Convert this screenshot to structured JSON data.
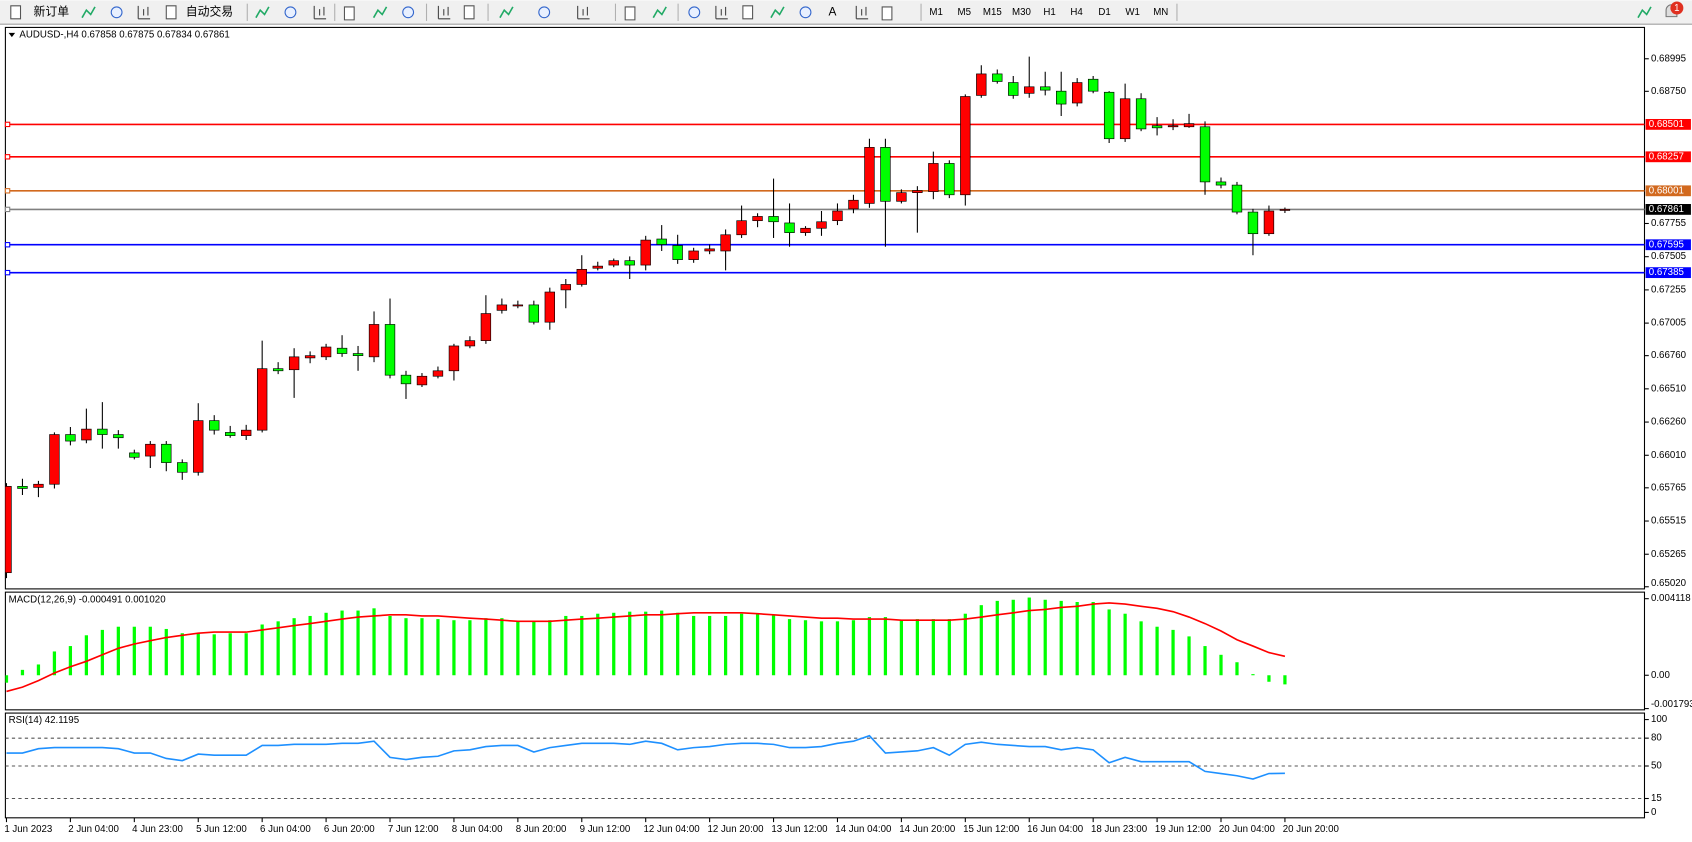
{
  "toolbar": {
    "new_order": "新订单",
    "auto_trading": "自动交易",
    "text_tool": "A",
    "timeframes": [
      "M1",
      "M5",
      "M15",
      "M30",
      "H1",
      "H4",
      "D1",
      "W1",
      "MN"
    ],
    "alerts": 1
  },
  "chart_data": [
    {
      "type": "candlestick",
      "title": "AUDUSD-,H4  0.67858 0.67875 0.67834 0.67861",
      "up_color": "#ff0000",
      "down_color": "#00ff00",
      "categories": [
        "1 Jun 2023",
        null,
        null,
        null,
        "2 Jun 04:00",
        null,
        null,
        null,
        "4 Jun 23:00",
        null,
        null,
        null,
        "5 Jun 12:00",
        null,
        null,
        null,
        "6 Jun 04:00",
        null,
        null,
        null,
        "6 Jun 20:00",
        null,
        null,
        null,
        "7 Jun 12:00",
        null,
        null,
        null,
        "8 Jun 04:00",
        null,
        null,
        null,
        "8 Jun 20:00",
        null,
        null,
        null,
        "9 Jun 12:00",
        null,
        null,
        null,
        "12 Jun 04:00",
        null,
        null,
        null,
        "12 Jun 20:00",
        null,
        null,
        null,
        "13 Jun 12:00",
        null,
        null,
        null,
        "14 Jun 04:00",
        null,
        null,
        null,
        "14 Jun 20:00",
        null,
        null,
        null,
        "15 Jun 12:00",
        null,
        null,
        null,
        "16 Jun 04:00",
        null,
        null,
        null,
        "18 Jun 23:00",
        null,
        null,
        null,
        "19 Jun 12:00",
        null,
        null,
        null,
        "20 Jun 04:00",
        null,
        null,
        null,
        "20 Jun 20:00"
      ],
      "candles": [
        [
          0.65126,
          0.658,
          0.65085,
          0.65776
        ],
        [
          0.65776,
          0.65833,
          0.65711,
          0.6576
        ],
        [
          0.65768,
          0.65817,
          0.65695,
          0.65792
        ],
        [
          0.65792,
          0.66182,
          0.6576,
          0.66166
        ],
        [
          0.66166,
          0.66223,
          0.66085,
          0.66117
        ],
        [
          0.66125,
          0.66361,
          0.66101,
          0.66207
        ],
        [
          0.66207,
          0.6641,
          0.6606,
          0.66166
        ],
        [
          0.66166,
          0.66199,
          0.6606,
          0.66142
        ],
        [
          0.66028,
          0.66052,
          0.65979,
          0.65995
        ],
        [
          0.66004,
          0.66117,
          0.65914,
          0.66093
        ],
        [
          0.66093,
          0.66117,
          0.6589,
          0.65955
        ],
        [
          0.65955,
          0.65979,
          0.65825,
          0.65882
        ],
        [
          0.65882,
          0.66402,
          0.65857,
          0.66271
        ],
        [
          0.66271,
          0.66312,
          0.66166,
          0.66199
        ],
        [
          0.66182,
          0.66231,
          0.66142,
          0.66158
        ],
        [
          0.66158,
          0.66239,
          0.66125,
          0.66199
        ],
        [
          0.66199,
          0.66873,
          0.66182,
          0.66662
        ],
        [
          0.66662,
          0.66711,
          0.66621,
          0.66646
        ],
        [
          0.66654,
          0.66816,
          0.66442,
          0.66751
        ],
        [
          0.66743,
          0.66792,
          0.66703,
          0.6676
        ],
        [
          0.66751,
          0.66849,
          0.66727,
          0.66825
        ],
        [
          0.66816,
          0.66914,
          0.66751,
          0.66776
        ],
        [
          0.66776,
          0.66833,
          0.66646,
          0.6676
        ],
        [
          0.66751,
          0.67093,
          0.66711,
          0.66995
        ],
        [
          0.66995,
          0.6719,
          0.66589,
          0.66613
        ],
        [
          0.66613,
          0.66646,
          0.66434,
          0.66548
        ],
        [
          0.6654,
          0.66629,
          0.66524,
          0.66605
        ],
        [
          0.66605,
          0.66678,
          0.66589,
          0.66646
        ],
        [
          0.66646,
          0.66849,
          0.66573,
          0.66833
        ],
        [
          0.66833,
          0.66906,
          0.66816,
          0.66873
        ],
        [
          0.66873,
          0.67215,
          0.66849,
          0.67077
        ],
        [
          0.67101,
          0.6719,
          0.67077,
          0.67142
        ],
        [
          0.67134,
          0.67174,
          0.67117,
          0.67142
        ],
        [
          0.67142,
          0.67174,
          0.66995,
          0.67012
        ],
        [
          0.67012,
          0.67272,
          0.66955,
          0.67239
        ],
        [
          0.67255,
          0.67337,
          0.67117,
          0.67296
        ],
        [
          0.67296,
          0.67516,
          0.6728,
          0.6741
        ],
        [
          0.67418,
          0.67467,
          0.67402,
          0.67434
        ],
        [
          0.67442,
          0.67491,
          0.67426,
          0.67475
        ],
        [
          0.67475,
          0.67507,
          0.67337,
          0.67442
        ],
        [
          0.67442,
          0.67662,
          0.67402,
          0.6763
        ],
        [
          0.67638,
          0.67743,
          0.67548,
          0.67597
        ],
        [
          0.67589,
          0.6767,
          0.67451,
          0.67483
        ],
        [
          0.67483,
          0.67572,
          0.67459,
          0.67548
        ],
        [
          0.67548,
          0.67597,
          0.67524,
          0.67564
        ],
        [
          0.67548,
          0.6771,
          0.67402,
          0.6767
        ],
        [
          0.6767,
          0.6789,
          0.67646,
          0.67776
        ],
        [
          0.67776,
          0.67832,
          0.67727,
          0.67808
        ],
        [
          0.67808,
          0.68093,
          0.67646,
          0.67768
        ],
        [
          0.67759,
          0.67906,
          0.6758,
          0.67686
        ],
        [
          0.67686,
          0.67735,
          0.67662,
          0.67719
        ],
        [
          0.67719,
          0.67849,
          0.67662,
          0.67768
        ],
        [
          0.67776,
          0.67906,
          0.67743,
          0.67849
        ],
        [
          0.67865,
          0.67971,
          0.67832,
          0.6793
        ],
        [
          0.67906,
          0.68393,
          0.67873,
          0.68328
        ],
        [
          0.68328,
          0.68393,
          0.6758,
          0.67922
        ],
        [
          0.67922,
          0.68012,
          0.67906,
          0.67987
        ],
        [
          0.67987,
          0.68036,
          0.67686,
          0.68003
        ],
        [
          0.67995,
          0.68296,
          0.67938,
          0.68207
        ],
        [
          0.68207,
          0.68231,
          0.67946,
          0.67971
        ],
        [
          0.67971,
          0.68727,
          0.6789,
          0.68711
        ],
        [
          0.68719,
          0.68946,
          0.68702,
          0.68881
        ],
        [
          0.68881,
          0.68914,
          0.68808,
          0.68824
        ],
        [
          0.68816,
          0.68865,
          0.68694,
          0.68719
        ],
        [
          0.68735,
          0.69011,
          0.68702,
          0.68784
        ],
        [
          0.68784,
          0.68897,
          0.68719,
          0.68759
        ],
        [
          0.68751,
          0.68897,
          0.68564,
          0.68654
        ],
        [
          0.68662,
          0.68849,
          0.68637,
          0.68816
        ],
        [
          0.68841,
          0.68865,
          0.68735,
          0.68751
        ],
        [
          0.68743,
          0.68751,
          0.68361,
          0.68393
        ],
        [
          0.68393,
          0.68808,
          0.68369,
          0.68694
        ],
        [
          0.68694,
          0.68735,
          0.6845,
          0.68467
        ],
        [
          0.68491,
          0.68556,
          0.68418,
          0.68475
        ],
        [
          0.68483,
          0.6854,
          0.68458,
          0.68491
        ],
        [
          0.68483,
          0.6858,
          0.68475,
          0.68507
        ],
        [
          0.68483,
          0.68524,
          0.67971,
          0.68068
        ],
        [
          0.68068,
          0.68101,
          0.6802,
          0.68044
        ],
        [
          0.68044,
          0.68068,
          0.67824,
          0.67841
        ],
        [
          0.67841,
          0.67865,
          0.67516,
          0.67678
        ],
        [
          0.67678,
          0.6789,
          0.67662,
          0.67849
        ],
        [
          0.67858,
          0.67875,
          0.67834,
          0.67861
        ]
      ],
      "ylim": [
        0.65004,
        0.69231
      ],
      "yticks": [
        0.68995,
        {
          "value": 0.6875,
          "label": "0.68750"
        },
        0.67755,
        0.67505,
        0.67255,
        0.67005,
        {
          "value": 0.6676,
          "label": "0.66760"
        },
        {
          "value": 0.6651,
          "label": "0.66510"
        },
        {
          "value": 0.6626,
          "label": "0.66260"
        },
        {
          "value": 0.6601,
          "label": "0.66010"
        },
        0.65765,
        0.65515,
        0.65265,
        {
          "value": 0.6502,
          "label": "0.65020"
        }
      ],
      "hlines": [
        {
          "value": 0.68501,
          "color": "#ff0000",
          "label_color": "#ff0000"
        },
        {
          "value": 0.68257,
          "color": "#ff0000",
          "label_color": "#ff0000"
        },
        {
          "value": 0.68001,
          "color": "#d2691e",
          "label_color": "#d2691e"
        },
        {
          "value": 0.67861,
          "color": "#808080",
          "label_color": "#000000"
        },
        {
          "value": 0.67595,
          "color": "#0000ff",
          "label_color": "#0000ff"
        },
        {
          "value": 0.67385,
          "color": "#0000ff",
          "label_color": "#0000ff"
        }
      ]
    },
    {
      "type": "macd",
      "title": "MACD(12,26,9) -0.000491 0.001020",
      "series": [
        {
          "style": "bar",
          "color": "#00ff00",
          "values": [
            -0.0004,
            0.00029,
            0.00058,
            0.00128,
            0.00157,
            0.00215,
            0.00244,
            0.00261,
            0.00261,
            0.00261,
            0.00249,
            0.00226,
            0.00226,
            0.0022,
            0.00226,
            0.00226,
            0.00273,
            0.0029,
            0.00307,
            0.00319,
            0.00336,
            0.00348,
            0.00348,
            0.0036,
            0.00319,
            0.00307,
            0.00307,
            0.00302,
            0.00296,
            0.00296,
            0.00307,
            0.00307,
            0.0029,
            0.0029,
            0.00296,
            0.00319,
            0.00319,
            0.00331,
            0.00336,
            0.00342,
            0.00342,
            0.00348,
            0.00336,
            0.00319,
            0.00319,
            0.00319,
            0.00331,
            0.00331,
            0.00325,
            0.00302,
            0.00296,
            0.0029,
            0.0029,
            0.00296,
            0.00313,
            0.00313,
            0.00296,
            0.00302,
            0.00302,
            0.00302,
            0.00331,
            0.00377,
            0.004,
            0.00406,
            0.00418,
            0.00406,
            0.004,
            0.00394,
            0.00394,
            0.00354,
            0.00331,
            0.0029,
            0.00261,
            0.00244,
            0.00209,
            0.00157,
            0.0011,
            0.0007,
            6e-05,
            -0.00035,
            -0.000491
          ]
        },
        {
          "style": "line",
          "color": "#ff0000",
          "values": [
            -0.00087,
            -0.00064,
            -0.00029,
            0.00012,
            0.00046,
            0.00075,
            0.0011,
            0.00145,
            0.00168,
            0.00186,
            0.00203,
            0.00215,
            0.00226,
            0.00232,
            0.00232,
            0.00232,
            0.00244,
            0.00255,
            0.00267,
            0.00278,
            0.0029,
            0.00302,
            0.00313,
            0.00319,
            0.00325,
            0.00325,
            0.00319,
            0.00319,
            0.00313,
            0.00307,
            0.00302,
            0.00296,
            0.0029,
            0.0029,
            0.0029,
            0.00296,
            0.00302,
            0.00307,
            0.00313,
            0.00319,
            0.00325,
            0.00325,
            0.00331,
            0.00336,
            0.00336,
            0.00336,
            0.00336,
            0.00331,
            0.00325,
            0.00319,
            0.00313,
            0.00307,
            0.00307,
            0.00302,
            0.00302,
            0.00302,
            0.00296,
            0.00296,
            0.00296,
            0.00296,
            0.00302,
            0.00313,
            0.00325,
            0.00336,
            0.00348,
            0.00354,
            0.00365,
            0.00371,
            0.00383,
            0.00389,
            0.00383,
            0.00371,
            0.0036,
            0.00342,
            0.00313,
            0.00278,
            0.00238,
            0.00191,
            0.00157,
            0.00122,
            0.00102
          ]
        }
      ],
      "ylim": [
        -0.00186,
        0.00447
      ],
      "yticks": [
        0.004118,
        {
          "value": 0,
          "label": "0.00"
        },
        -0.001793
      ]
    },
    {
      "type": "line",
      "title": "RSI(14) 42.1195",
      "series": [
        {
          "style": "line",
          "color": "#1e90ff",
          "values": [
            64.0,
            64.0,
            68.6,
            69.8,
            69.8,
            69.8,
            69.8,
            68.6,
            64.0,
            64.0,
            58.1,
            55.8,
            62.8,
            61.6,
            61.6,
            61.6,
            72.1,
            72.1,
            73.3,
            73.3,
            73.3,
            74.4,
            74.4,
            76.7,
            59.3,
            57.0,
            59.3,
            60.5,
            66.3,
            67.4,
            70.9,
            72.1,
            72.1,
            65.1,
            69.8,
            72.1,
            74.4,
            74.4,
            74.4,
            73.3,
            76.7,
            74.4,
            67.4,
            69.8,
            70.9,
            73.3,
            74.4,
            74.4,
            73.3,
            69.8,
            69.8,
            70.9,
            74.4,
            76.7,
            82.6,
            64.0,
            65.1,
            66.3,
            69.8,
            61.6,
            73.3,
            75.6,
            73.3,
            72.1,
            70.9,
            70.9,
            67.4,
            69.8,
            67.4,
            53.5,
            59.3,
            54.7,
            54.7,
            54.7,
            54.7,
            44.2,
            41.9,
            39.5,
            36.0,
            41.9,
            42.1195
          ]
        }
      ],
      "ylim": [
        -5.8,
        107
      ],
      "yticks": [
        100,
        80,
        50,
        15,
        0
      ],
      "levels": [
        80,
        50,
        15
      ]
    }
  ]
}
